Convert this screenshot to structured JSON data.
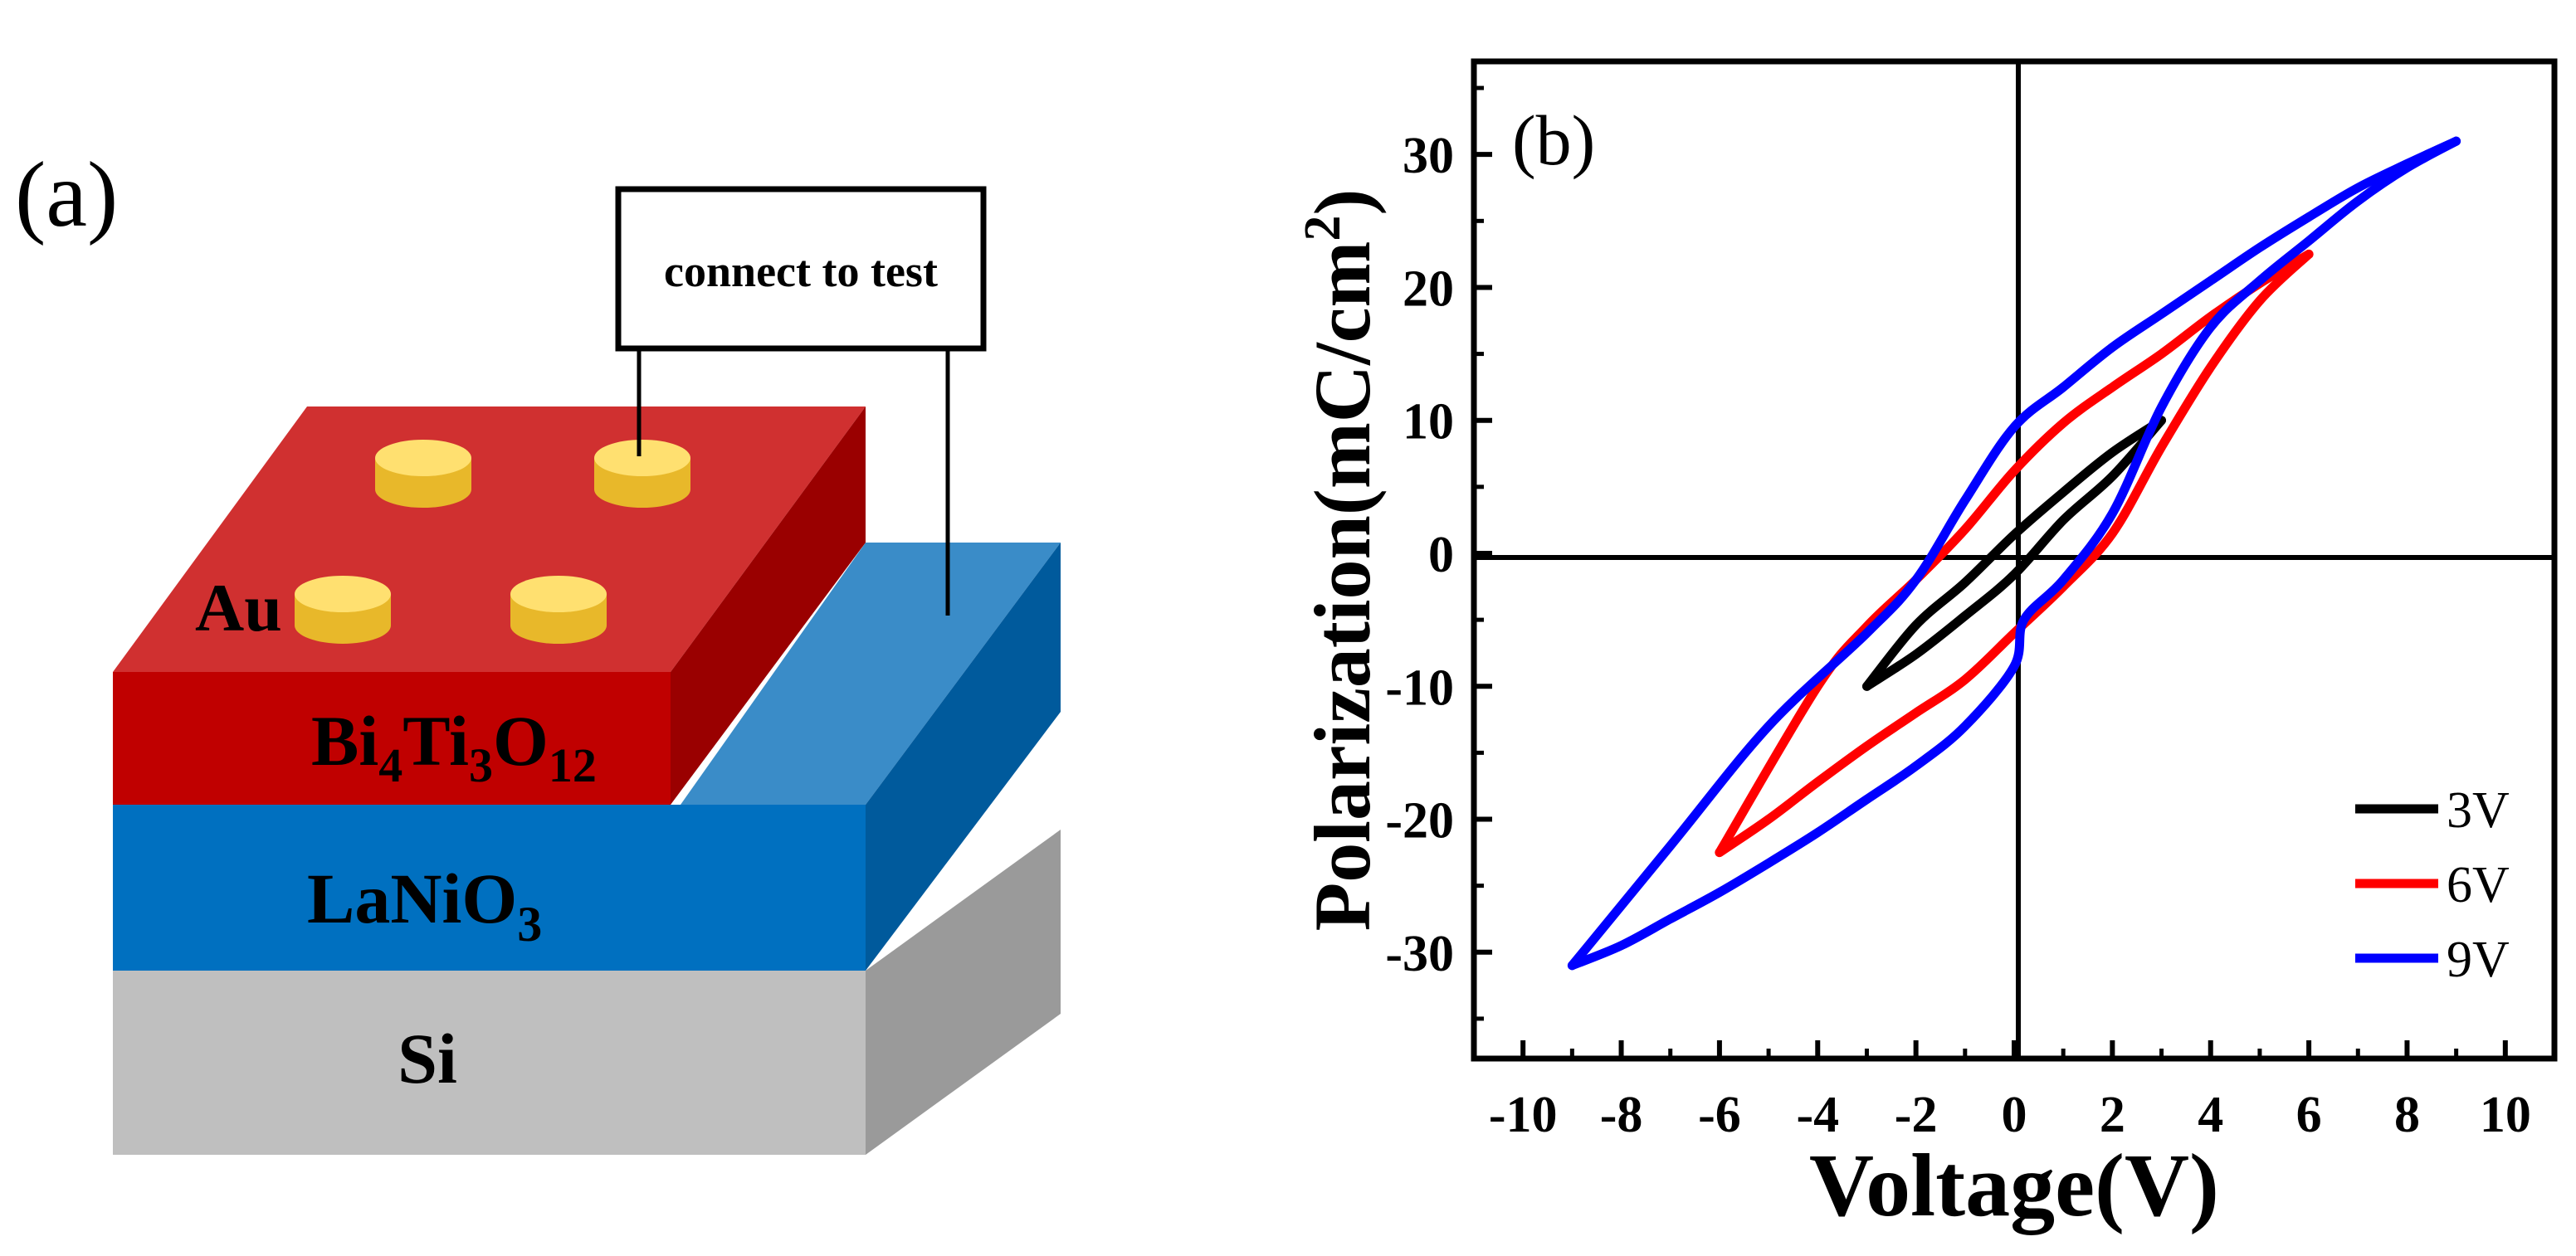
{
  "panel_a": {
    "label": "(a)",
    "test_box_label": "connect to test",
    "electrode_label": "Au",
    "layers": {
      "bto": {
        "prefix": "Bi",
        "sub1": "4",
        "mid": "Ti",
        "sub2": "3",
        "suffix": "O",
        "sub3": "12"
      },
      "lno": {
        "main": "LaNiO",
        "sub": "3"
      },
      "si": {
        "main": "Si"
      }
    },
    "colors": {
      "bto_front": "#C00000",
      "bto_top": "#D03030",
      "bto_side": "#9A0000",
      "lno_front": "#0070C0",
      "lno_top": "#3A8CC8",
      "lno_side": "#005A9C",
      "si_front": "#BFBFBF",
      "si_side": "#9A9A9A",
      "gold_top": "#FFE070",
      "gold_side": "#E8B82A"
    }
  },
  "panel_b": {
    "label": "(b)",
    "chart_data": {
      "type": "line",
      "title": "",
      "xlabel": "Voltage(V)",
      "ylabel": {
        "main": "Polarization(mC/cm",
        "sup": "2",
        "end": ")"
      },
      "xlim": [
        -11,
        11
      ],
      "ylim": [
        -38,
        37
      ],
      "xticks": [
        -10,
        -8,
        -6,
        -4,
        -2,
        0,
        2,
        4,
        6,
        8,
        10
      ],
      "yticks": [
        -30,
        -20,
        -10,
        0,
        10,
        20,
        30
      ],
      "legend_position": "lower-right",
      "series": [
        {
          "name": "3V",
          "color": "#000000",
          "upper": [
            [
              -3,
              -10
            ],
            [
              -2,
              -5.4
            ],
            [
              -1,
              -2.2
            ],
            [
              0,
              1.4
            ],
            [
              1,
              4.6
            ],
            [
              2,
              7.6
            ],
            [
              3,
              10
            ]
          ],
          "lower": [
            [
              -3,
              -10
            ],
            [
              -2,
              -7.6
            ],
            [
              -1,
              -4.7
            ],
            [
              0,
              -1.6
            ],
            [
              1,
              2.5
            ],
            [
              2,
              5.8
            ],
            [
              3,
              10
            ]
          ]
        },
        {
          "name": "6V",
          "color": "#FF0000",
          "upper": [
            [
              -6,
              -22.5
            ],
            [
              -4,
              -10
            ],
            [
              -3,
              -5.5
            ],
            [
              -2,
              -2
            ],
            [
              -1,
              1.8
            ],
            [
              0,
              6.2
            ],
            [
              1,
              9.8
            ],
            [
              2,
              12.5
            ],
            [
              3,
              15
            ],
            [
              4,
              17.8
            ],
            [
              5,
              20.3
            ],
            [
              6,
              22.5
            ]
          ],
          "lower": [
            [
              -6,
              -22.5
            ],
            [
              -5,
              -20
            ],
            [
              -4,
              -17.2
            ],
            [
              -3,
              -14.5
            ],
            [
              -2,
              -12
            ],
            [
              -1,
              -9.5
            ],
            [
              0,
              -6
            ],
            [
              1,
              -2.5
            ],
            [
              2,
              1.5
            ],
            [
              3,
              8
            ],
            [
              4,
              14
            ],
            [
              5,
              19
            ],
            [
              6,
              22.5
            ]
          ]
        },
        {
          "name": "9V",
          "color": "#0000FF",
          "upper": [
            [
              -9,
              -31
            ],
            [
              -7,
              -22
            ],
            [
              -5,
              -13
            ],
            [
              -3,
              -6
            ],
            [
              -2,
              -2
            ],
            [
              -1,
              4
            ],
            [
              0,
              9.5
            ],
            [
              1,
              12.5
            ],
            [
              2,
              15.5
            ],
            [
              3,
              18
            ],
            [
              4,
              20.5
            ],
            [
              5,
              23
            ],
            [
              6,
              25.3
            ],
            [
              7,
              27.5
            ],
            [
              8,
              29.3
            ],
            [
              9,
              31
            ]
          ],
          "lower": [
            [
              -9,
              -31
            ],
            [
              -8,
              -29.5
            ],
            [
              -7,
              -27.5
            ],
            [
              -6,
              -25.5
            ],
            [
              -5,
              -23.3
            ],
            [
              -4,
              -21
            ],
            [
              -3,
              -18.5
            ],
            [
              -2,
              -16
            ],
            [
              -1,
              -13
            ],
            [
              0,
              -8.5
            ],
            [
              0.2,
              -5
            ],
            [
              1,
              -2
            ],
            [
              2,
              3
            ],
            [
              3,
              11
            ],
            [
              4,
              17
            ],
            [
              5,
              20.5
            ],
            [
              6,
              23.5
            ],
            [
              7,
              26.5
            ],
            [
              8,
              29
            ],
            [
              9,
              31
            ]
          ]
        }
      ]
    }
  }
}
